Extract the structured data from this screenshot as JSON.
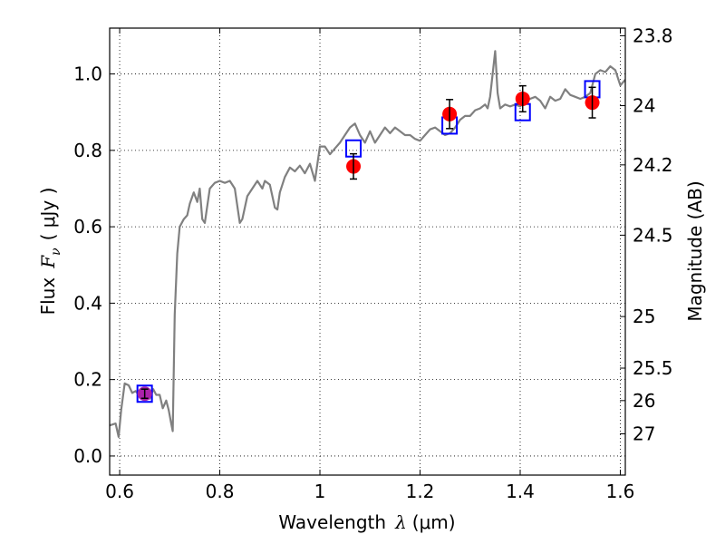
{
  "chart_data": {
    "type": "line",
    "xlabel": "Wavelength",
    "xlabel_symbol": "λ",
    "xlabel_unit": "(μm)",
    "ylabel": "Flux",
    "ylabel_symbol": "F",
    "ylabel_subscript": "ν",
    "ylabel_unit": "( μJy )",
    "y2label": "Magnitude (AB)",
    "xlim": [
      0.58,
      1.61
    ],
    "ylim": [
      -0.05,
      1.12
    ],
    "grid": true,
    "grid_style": "dotted",
    "x_ticks": [
      0.6,
      0.8,
      1.0,
      1.2,
      1.4,
      1.6
    ],
    "x_tick_labels": [
      "0.6",
      "0.8",
      "1",
      "1.2",
      "1.4",
      "1.6"
    ],
    "y_ticks": [
      0.0,
      0.2,
      0.4,
      0.6,
      0.8,
      1.0
    ],
    "y_tick_labels": [
      "0.0",
      "0.2",
      "0.4",
      "0.6",
      "0.8",
      "1.0"
    ],
    "y2_ticks": [
      {
        "label": "23.8",
        "flux": 1.1
      },
      {
        "label": "24",
        "flux": 0.917
      },
      {
        "label": "24.2",
        "flux": 0.762
      },
      {
        "label": "24.5",
        "flux": 0.578
      },
      {
        "label": "25",
        "flux": 0.365
      },
      {
        "label": "25.5",
        "flux": 0.23
      },
      {
        "label": "26",
        "flux": 0.145
      },
      {
        "label": "27",
        "flux": 0.058
      }
    ],
    "colors": {
      "model": "#808080",
      "photometry": "#ff0000",
      "photometry_first": "#aa22aa",
      "synthetic": "#0000ff",
      "errorbar": "#000000"
    },
    "series": [
      {
        "name": "model spectrum",
        "kind": "line",
        "points": [
          [
            0.58,
            0.08
          ],
          [
            0.592,
            0.085
          ],
          [
            0.598,
            0.05
          ],
          [
            0.603,
            0.12
          ],
          [
            0.61,
            0.19
          ],
          [
            0.618,
            0.185
          ],
          [
            0.625,
            0.165
          ],
          [
            0.632,
            0.17
          ],
          [
            0.638,
            0.16
          ],
          [
            0.645,
            0.165
          ],
          [
            0.652,
            0.17
          ],
          [
            0.66,
            0.15
          ],
          [
            0.667,
            0.175
          ],
          [
            0.673,
            0.16
          ],
          [
            0.68,
            0.16
          ],
          [
            0.686,
            0.125
          ],
          [
            0.693,
            0.145
          ],
          [
            0.698,
            0.12
          ],
          [
            0.703,
            0.085
          ],
          [
            0.706,
            0.065
          ],
          [
            0.71,
            0.37
          ],
          [
            0.715,
            0.53
          ],
          [
            0.72,
            0.6
          ],
          [
            0.728,
            0.62
          ],
          [
            0.735,
            0.63
          ],
          [
            0.74,
            0.66
          ],
          [
            0.748,
            0.69
          ],
          [
            0.755,
            0.665
          ],
          [
            0.76,
            0.7
          ],
          [
            0.765,
            0.62
          ],
          [
            0.77,
            0.61
          ],
          [
            0.78,
            0.7
          ],
          [
            0.79,
            0.715
          ],
          [
            0.8,
            0.72
          ],
          [
            0.81,
            0.715
          ],
          [
            0.82,
            0.72
          ],
          [
            0.83,
            0.7
          ],
          [
            0.84,
            0.61
          ],
          [
            0.845,
            0.62
          ],
          [
            0.855,
            0.68
          ],
          [
            0.865,
            0.7
          ],
          [
            0.875,
            0.72
          ],
          [
            0.885,
            0.7
          ],
          [
            0.89,
            0.72
          ],
          [
            0.9,
            0.71
          ],
          [
            0.91,
            0.65
          ],
          [
            0.915,
            0.645
          ],
          [
            0.92,
            0.69
          ],
          [
            0.93,
            0.73
          ],
          [
            0.94,
            0.755
          ],
          [
            0.95,
            0.745
          ],
          [
            0.96,
            0.76
          ],
          [
            0.97,
            0.74
          ],
          [
            0.98,
            0.765
          ],
          [
            0.99,
            0.72
          ],
          [
            1.0,
            0.81
          ],
          [
            1.01,
            0.81
          ],
          [
            1.02,
            0.79
          ],
          [
            1.03,
            0.805
          ],
          [
            1.04,
            0.82
          ],
          [
            1.05,
            0.84
          ],
          [
            1.06,
            0.86
          ],
          [
            1.07,
            0.87
          ],
          [
            1.08,
            0.84
          ],
          [
            1.09,
            0.82
          ],
          [
            1.1,
            0.85
          ],
          [
            1.11,
            0.82
          ],
          [
            1.12,
            0.84
          ],
          [
            1.13,
            0.86
          ],
          [
            1.14,
            0.845
          ],
          [
            1.15,
            0.86
          ],
          [
            1.16,
            0.85
          ],
          [
            1.17,
            0.84
          ],
          [
            1.18,
            0.84
          ],
          [
            1.19,
            0.83
          ],
          [
            1.2,
            0.825
          ],
          [
            1.21,
            0.84
          ],
          [
            1.22,
            0.855
          ],
          [
            1.23,
            0.86
          ],
          [
            1.24,
            0.85
          ],
          [
            1.25,
            0.84
          ],
          [
            1.26,
            0.845
          ],
          [
            1.27,
            0.86
          ],
          [
            1.28,
            0.88
          ],
          [
            1.29,
            0.89
          ],
          [
            1.3,
            0.89
          ],
          [
            1.31,
            0.905
          ],
          [
            1.32,
            0.91
          ],
          [
            1.33,
            0.92
          ],
          [
            1.335,
            0.91
          ],
          [
            1.34,
            0.94
          ],
          [
            1.345,
            1.0
          ],
          [
            1.35,
            1.06
          ],
          [
            1.355,
            0.95
          ],
          [
            1.36,
            0.91
          ],
          [
            1.37,
            0.92
          ],
          [
            1.38,
            0.915
          ],
          [
            1.39,
            0.92
          ],
          [
            1.4,
            0.915
          ],
          [
            1.41,
            0.93
          ],
          [
            1.42,
            0.935
          ],
          [
            1.43,
            0.94
          ],
          [
            1.44,
            0.93
          ],
          [
            1.45,
            0.91
          ],
          [
            1.46,
            0.94
          ],
          [
            1.47,
            0.93
          ],
          [
            1.48,
            0.935
          ],
          [
            1.49,
            0.96
          ],
          [
            1.5,
            0.945
          ],
          [
            1.51,
            0.94
          ],
          [
            1.52,
            0.935
          ],
          [
            1.53,
            0.94
          ],
          [
            1.54,
            0.95
          ],
          [
            1.55,
            1.0
          ],
          [
            1.56,
            1.01
          ],
          [
            1.57,
            1.005
          ],
          [
            1.58,
            1.02
          ],
          [
            1.59,
            1.01
          ],
          [
            1.6,
            0.97
          ],
          [
            1.61,
            0.985
          ]
        ]
      },
      {
        "name": "observed photometry",
        "kind": "points",
        "points": [
          {
            "x": 0.65,
            "y": 0.163,
            "err": 0.012
          },
          {
            "x": 1.067,
            "y": 0.758,
            "err": 0.033
          },
          {
            "x": 1.259,
            "y": 0.895,
            "err": 0.038
          },
          {
            "x": 1.405,
            "y": 0.935,
            "err": 0.034
          },
          {
            "x": 1.544,
            "y": 0.925,
            "err": 0.04
          }
        ]
      },
      {
        "name": "synthetic photometry",
        "kind": "open-squares",
        "points": [
          {
            "x": 0.65,
            "y": 0.163
          },
          {
            "x": 1.067,
            "y": 0.805
          },
          {
            "x": 1.259,
            "y": 0.865
          },
          {
            "x": 1.405,
            "y": 0.9
          },
          {
            "x": 1.544,
            "y": 0.96
          }
        ]
      }
    ]
  }
}
